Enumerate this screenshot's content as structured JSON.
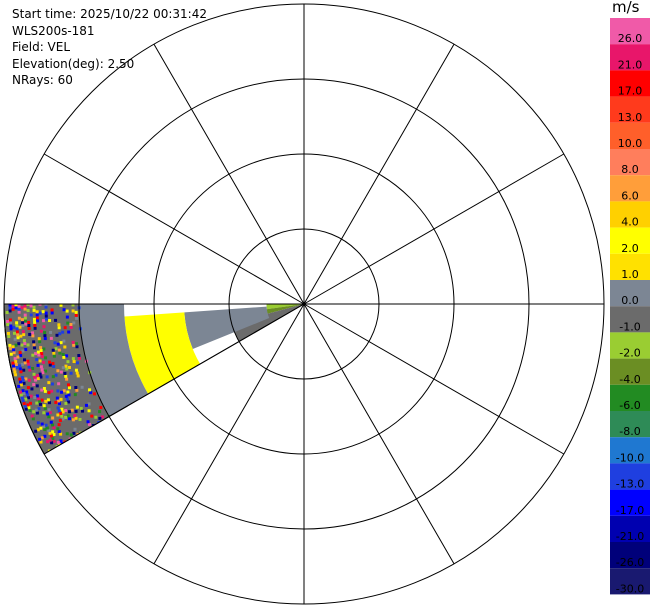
{
  "info": {
    "start_time": "Start time: 2025/10/22 00:31:42",
    "instrument": "WLS200s-181",
    "field": "Field: VEL",
    "elevation": "Elevation(deg): 2.50",
    "nrays": "NRays: 60"
  },
  "colorbar": {
    "unit": "m/s",
    "segments": [
      {
        "label": "26.0",
        "color": "#f05aa8"
      },
      {
        "label": "21.0",
        "color": "#e8166a"
      },
      {
        "label": "17.0",
        "color": "#ff0000"
      },
      {
        "label": "13.0",
        "color": "#ff3a1c"
      },
      {
        "label": "10.0",
        "color": "#ff5f2a"
      },
      {
        "label": "8.0",
        "color": "#ff7e5c"
      },
      {
        "label": "6.0",
        "color": "#ff9e3a"
      },
      {
        "label": "4.0",
        "color": "#ffd000"
      },
      {
        "label": "2.0",
        "color": "#ffff00"
      },
      {
        "label": "1.0",
        "color": "#ffe100"
      },
      {
        "label": "0.0",
        "color": "#7c8694"
      },
      {
        "label": "-1.0",
        "color": "#6b6b6b"
      },
      {
        "label": "-2.0",
        "color": "#9acd32"
      },
      {
        "label": "-4.0",
        "color": "#6b8e23"
      },
      {
        "label": "-6.0",
        "color": "#228b22"
      },
      {
        "label": "-8.0",
        "color": "#2e8b57"
      },
      {
        "label": "-10.0",
        "color": "#1f78d1"
      },
      {
        "label": "-13.0",
        "color": "#1f3fe0"
      },
      {
        "label": "-17.0",
        "color": "#0000ff"
      },
      {
        "label": "-21.0",
        "color": "#0000b0"
      },
      {
        "label": "-26.0",
        "color": "#00007a"
      },
      {
        "label": "-30.0",
        "color": "#191970"
      }
    ]
  },
  "chart_data": {
    "type": "heatmap",
    "projection": "polar PPI",
    "rings": 4,
    "spoke_step_deg": 30,
    "sector": {
      "start_azimuth_deg": 240,
      "end_azimuth_deg": 270
    },
    "colors": {
      "dark_gray": "#6b6b6b",
      "slate": "#7c8694",
      "light_green": "#9acd32",
      "olive": "#6b8e23",
      "yellow": "#ffff00",
      "gold": "#ffe100"
    },
    "bands": [
      {
        "from_ring": 0.0,
        "to_ring": 0.5,
        "az_from": 262,
        "az_to": 270,
        "color": "#9acd32"
      },
      {
        "from_ring": 0.0,
        "to_ring": 0.75,
        "az_from": 255,
        "az_to": 262,
        "color": "#6b8e23"
      },
      {
        "from_ring": 0.0,
        "to_ring": 1.0,
        "az_from": 240,
        "az_to": 255,
        "color": "#6b6b6b"
      },
      {
        "from_ring": 0.5,
        "to_ring": 1.6,
        "az_from": 248,
        "az_to": 266,
        "color": "#7c8694"
      },
      {
        "from_ring": 1.6,
        "to_ring": 2.4,
        "az_from": 240,
        "az_to": 266,
        "color": "#ffff00"
      },
      {
        "from_ring": 2.4,
        "to_ring": 3.0,
        "az_from": 240,
        "az_to": 270,
        "color": "#7c8694"
      },
      {
        "from_ring": 3.0,
        "to_ring": 4.0,
        "az_from": 240,
        "az_to": 270,
        "color": "#6b6b6b"
      }
    ],
    "noise": {
      "from_ring": 3.0,
      "to_ring": 4.0,
      "density": 0.55,
      "seed": 7,
      "colors": [
        "#ffff00",
        "#ffd000",
        "#0000ff",
        "#1f3fe0",
        "#ff0000",
        "#e8166a",
        "#f05aa8",
        "#ff9e3a",
        "#9acd32",
        "#7c8694",
        "#00007a",
        "#228b22"
      ]
    }
  }
}
